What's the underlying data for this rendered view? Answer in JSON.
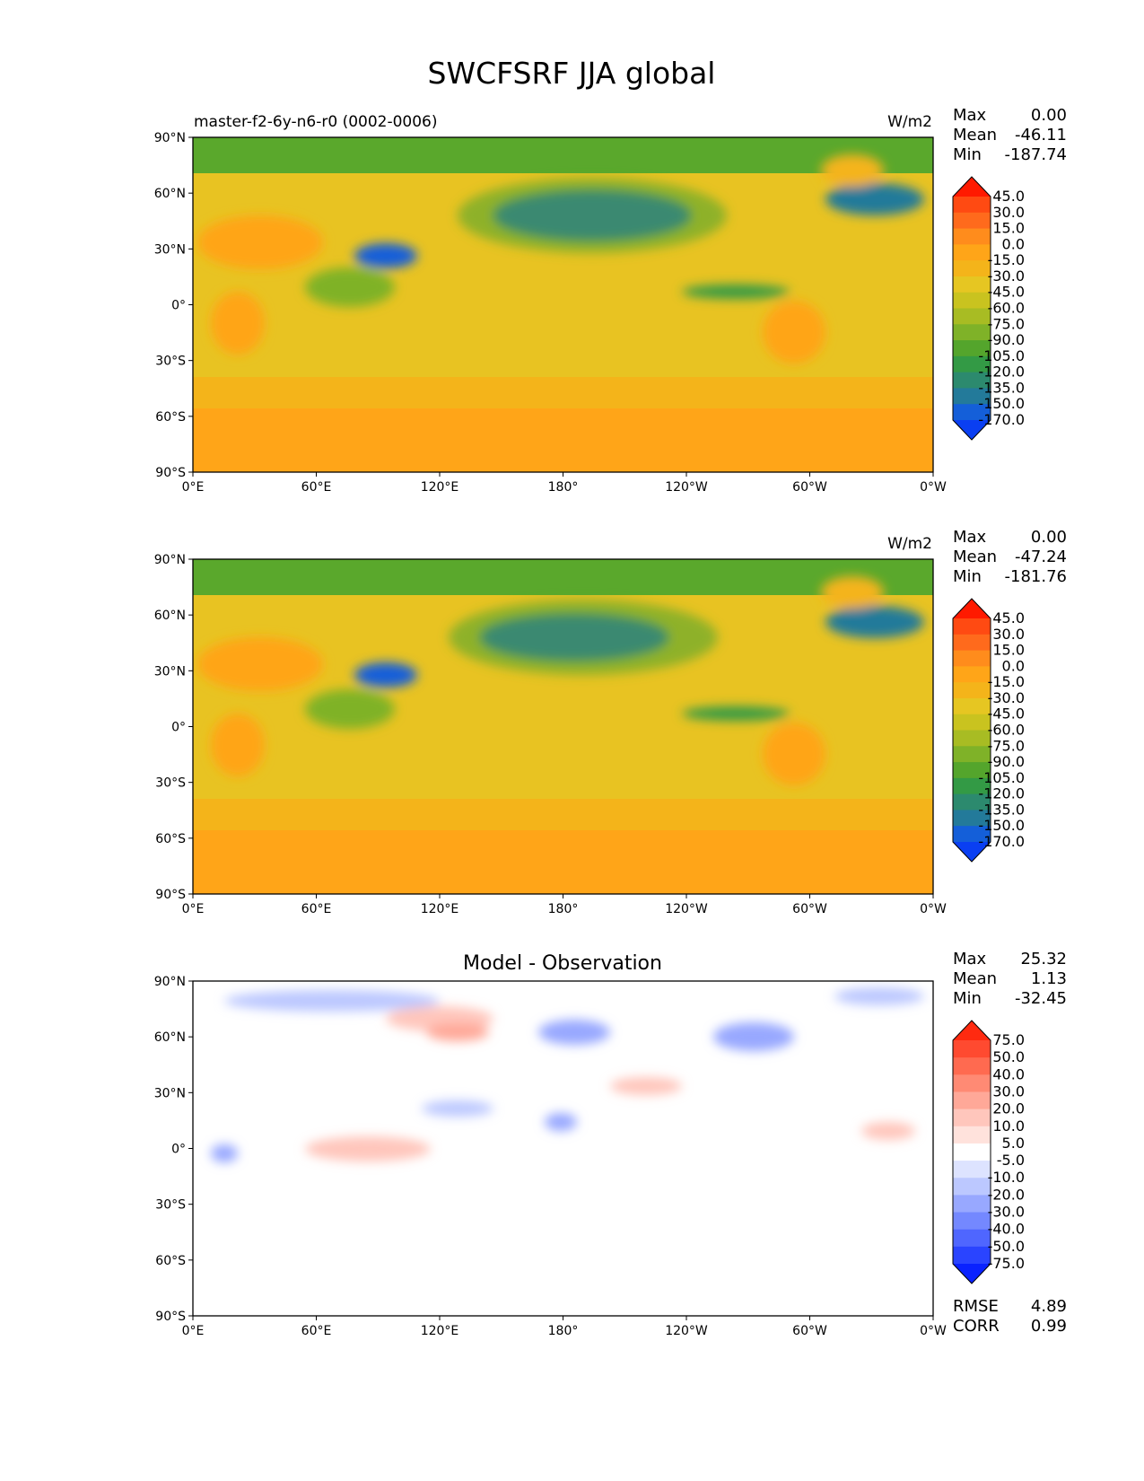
{
  "figure": {
    "title": "SWCFSRF JJA global"
  },
  "axis_ticks": {
    "lat": [
      "90°N",
      "60°N",
      "30°N",
      "0°",
      "30°S",
      "60°S",
      "90°S"
    ],
    "lon": [
      "0°E",
      "60°E",
      "120°E",
      "180°",
      "120°W",
      "60°W",
      "0°W"
    ]
  },
  "stat_labels": {
    "max": "Max",
    "mean": "Mean",
    "min": "Min",
    "rmse": "RMSE",
    "corr": "CORR"
  },
  "chart_data": [
    {
      "type": "heatmap",
      "panel": "test",
      "title_left": "master-f2-6y-n6-r0 (0002-0006)",
      "units": "W/m2",
      "stats": {
        "max": "0.00",
        "mean": "-46.11",
        "min": "-187.74"
      },
      "xlim": [
        0,
        360
      ],
      "ylim": [
        -90,
        90
      ],
      "colorbar": {
        "labels": [
          "45.0",
          "30.0",
          "15.0",
          "0.0",
          "-15.0",
          "-30.0",
          "-45.0",
          "-60.0",
          "-75.0",
          "-90.0",
          "-105.0",
          "-120.0",
          "-135.0",
          "-150.0",
          "-170.0"
        ],
        "colors": [
          "#ff1a00",
          "#ff4a12",
          "#ff6a1c",
          "#ff8c1c",
          "#ffa518",
          "#f4b41a",
          "#e6c622",
          "#c9c31f",
          "#a8bc23",
          "#7fb228",
          "#54a52c",
          "#339a45",
          "#2c8a6e",
          "#237a9a",
          "#145fd9",
          "#0a3ff2"
        ]
      }
    },
    {
      "type": "heatmap",
      "panel": "reference",
      "title_left": "",
      "units": "W/m2",
      "stats": {
        "max": "0.00",
        "mean": "-47.24",
        "min": "-181.76"
      },
      "xlim": [
        0,
        360
      ],
      "ylim": [
        -90,
        90
      ],
      "colorbar": {
        "labels": [
          "45.0",
          "30.0",
          "15.0",
          "0.0",
          "-15.0",
          "-30.0",
          "-45.0",
          "-60.0",
          "-75.0",
          "-90.0",
          "-105.0",
          "-120.0",
          "-135.0",
          "-150.0",
          "-170.0"
        ],
        "colors": [
          "#ff1a00",
          "#ff4a12",
          "#ff6a1c",
          "#ff8c1c",
          "#ffa518",
          "#f4b41a",
          "#e6c622",
          "#c9c31f",
          "#a8bc23",
          "#7fb228",
          "#54a52c",
          "#339a45",
          "#2c8a6e",
          "#237a9a",
          "#145fd9",
          "#0a3ff2"
        ]
      }
    },
    {
      "type": "heatmap",
      "panel": "difference",
      "title_center": "Model - Observation",
      "stats": {
        "max": "25.32",
        "mean": "1.13",
        "min": "-32.45",
        "rmse": "4.89",
        "corr": "0.99"
      },
      "xlim": [
        0,
        360
      ],
      "ylim": [
        -90,
        90
      ],
      "colorbar": {
        "labels": [
          "75.0",
          "50.0",
          "40.0",
          "30.0",
          "20.0",
          "10.0",
          "5.0",
          "-5.0",
          "-10.0",
          "-20.0",
          "-30.0",
          "-40.0",
          "-50.0",
          "-75.0"
        ],
        "colors": [
          "#ff2a10",
          "#ff4a30",
          "#ff6a50",
          "#ff8a74",
          "#ffa898",
          "#ffc6bc",
          "#ffe2dc",
          "#ffffff",
          "#dde3ff",
          "#bcc8ff",
          "#98a8ff",
          "#7488ff",
          "#4f66ff",
          "#2a44ff",
          "#0a22ff"
        ]
      }
    }
  ]
}
